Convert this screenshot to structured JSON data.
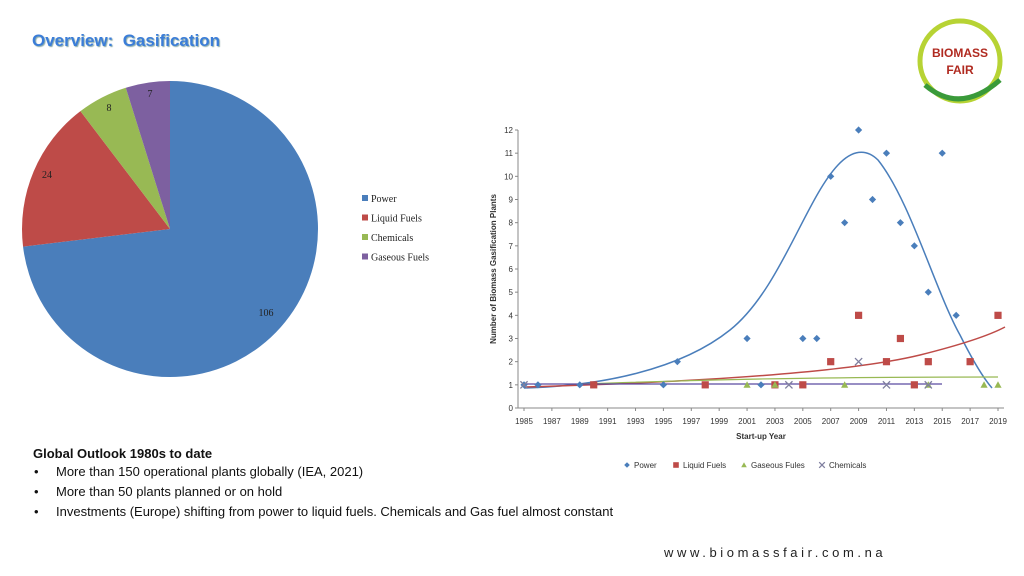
{
  "slide": {
    "title": "Overview:  Gasification",
    "logo": [
      "BIOMASS",
      "FAIR"
    ],
    "heading": "Global Outlook 1980s to date",
    "bullets": [
      "More than 150 operational plants globally (IEA, 2021)",
      "More than 50 plants planned or on hold",
      "Investments (Europe) shifting from power to liquid fuels. Chemicals and Gas fuel almost constant"
    ],
    "website": "www.biomassfair.com.na"
  },
  "chart_data": [
    {
      "type": "pie",
      "categories": [
        "Power",
        "Liquid Fuels",
        "Chemicals",
        "Gaseous Fuels"
      ],
      "values": [
        106,
        24,
        8,
        7
      ],
      "colors": [
        "#4a7ebb",
        "#be4b48",
        "#98b954",
        "#7d60a0"
      ],
      "legend": "right"
    },
    {
      "type": "scatter",
      "x_label": "Start-up Year",
      "y_label": "Number of Biomass Gasification Plants",
      "xlim": [
        1985,
        2019
      ],
      "xticks": [
        1985,
        1987,
        1989,
        1991,
        1993,
        1995,
        1997,
        1999,
        2001,
        2003,
        2005,
        2007,
        2009,
        2011,
        2013,
        2015,
        2017,
        2019
      ],
      "ylim": [
        0,
        12
      ],
      "yticks": [
        0,
        1,
        2,
        3,
        4,
        5,
        6,
        7,
        8,
        9,
        10,
        11,
        12
      ],
      "legend": "bottom",
      "series": [
        {
          "name": "Power",
          "color": "#4a7ebb",
          "marker": "diamond",
          "x": [
            1985,
            1986,
            1989,
            1995,
            1996,
            2001,
            2002,
            2005,
            2006,
            2007,
            2008,
            2009,
            2010,
            2011,
            2012,
            2013,
            2014,
            2015,
            2016
          ],
          "values": [
            1,
            1,
            1,
            1,
            2,
            3,
            1,
            3,
            3,
            10,
            8,
            12,
            9,
            11,
            8,
            7,
            5,
            11,
            4
          ]
        },
        {
          "name": "Liquid Fuels",
          "color": "#be4b48",
          "marker": "square",
          "x": [
            1990,
            1998,
            2003,
            2005,
            2007,
            2009,
            2011,
            2012,
            2013,
            2014,
            2017,
            2019
          ],
          "values": [
            1,
            1,
            1,
            1,
            2,
            4,
            2,
            3,
            1,
            2,
            2,
            4
          ]
        },
        {
          "name": "Gaseous Fules",
          "color": "#98b954",
          "marker": "triangle",
          "x": [
            2001,
            2003,
            2008,
            2014,
            2018,
            2019
          ],
          "values": [
            1,
            1,
            1,
            1,
            1,
            1
          ]
        },
        {
          "name": "Chemicals",
          "color": "#7f7f9f",
          "marker": "x",
          "x": [
            1985,
            2004,
            2009,
            2011,
            2014
          ],
          "values": [
            1,
            1,
            2,
            1,
            1
          ]
        }
      ]
    }
  ]
}
